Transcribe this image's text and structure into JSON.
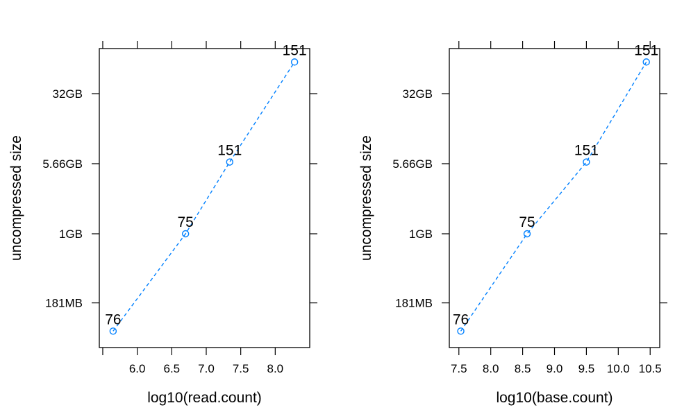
{
  "chart_data": [
    {
      "type": "line",
      "xlabel": "log10(read.count)",
      "ylabel": "uncompressed size",
      "xticks": [
        "6.0",
        "6.5",
        "7.0",
        "7.5",
        "8.0"
      ],
      "xlim": [
        5.45,
        8.5
      ],
      "y_scale": "log",
      "yticks": [
        "181MB",
        "1GB",
        "5.66GB",
        "32GB"
      ],
      "series": [
        {
          "x": [
            5.65,
            6.7,
            7.34,
            8.28
          ],
          "y_gb": [
            0.09,
            1.0,
            5.9,
            70.0
          ],
          "labels": [
            "76",
            "75",
            "151",
            "151"
          ]
        }
      ]
    },
    {
      "type": "line",
      "xlabel": "log10(base.count)",
      "ylabel": "uncompressed size",
      "xticks": [
        "7.5",
        "8.0",
        "8.5",
        "9.0",
        "9.5",
        "10.0",
        "10.5"
      ],
      "xlim": [
        7.35,
        10.65
      ],
      "y_scale": "log",
      "yticks": [
        "181MB",
        "1GB",
        "5.66GB",
        "32GB"
      ],
      "series": [
        {
          "x": [
            7.53,
            8.57,
            9.5,
            10.44
          ],
          "y_gb": [
            0.09,
            1.0,
            5.9,
            70.0
          ],
          "labels": [
            "76",
            "75",
            "151",
            "151"
          ]
        }
      ]
    }
  ],
  "style": {
    "series_color": "#0080ff",
    "frame_color": "#000000"
  }
}
